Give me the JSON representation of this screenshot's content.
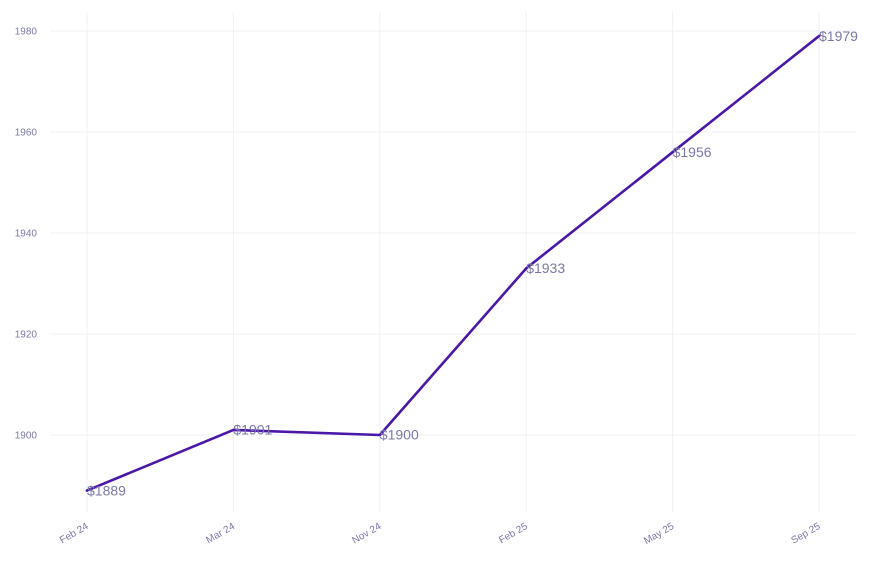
{
  "chart_data": {
    "type": "line",
    "title": "",
    "xlabel": "",
    "ylabel": "",
    "categories": [
      "Feb 24",
      "Mar 24",
      "Nov 24",
      "Feb 25",
      "May 25",
      "Sep 25"
    ],
    "series": [
      {
        "values": [
          1889,
          1901,
          1900,
          1933,
          1956,
          1979
        ],
        "data_labels": [
          "$1889",
          "$1901",
          "$1900",
          "$1933",
          "$1956",
          "$1979"
        ],
        "color": "#4a17a8"
      }
    ],
    "yticks": [
      1900,
      1920,
      1940,
      1960,
      1980
    ],
    "ytick_labels": [
      "1900",
      "1920",
      "1940",
      "1960",
      "1980"
    ],
    "ylim": [
      1885,
      1981
    ],
    "grid": true,
    "legend": "none",
    "colors": {
      "line": "#4a17a8",
      "label_text": "#7b78a8",
      "grid": "#f1f1f6"
    }
  }
}
